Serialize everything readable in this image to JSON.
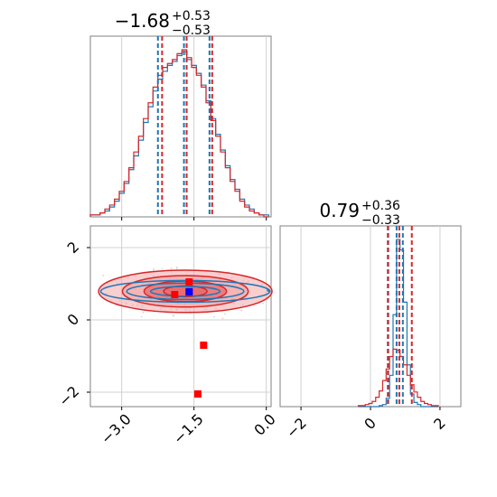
{
  "colors": {
    "blue": "#1f77b4",
    "red": "#d62728",
    "red_fill": "#f4a6a8",
    "red_fill_dark": "#e66c70",
    "grid": "#d0d0d0",
    "frame": "#808080",
    "marker_red": "#ff0000",
    "marker_blue": "#0000ff"
  },
  "chart_data": [
    {
      "type": "histogram",
      "panel": "top-left",
      "title": {
        "main": "−1.68",
        "sup": "+0.53",
        "sub": "−0.53"
      },
      "xlim": [
        -3.65,
        0.1
      ],
      "quantile_lines": {
        "blue": [
          -2.22,
          -1.68,
          -1.15
        ],
        "red": [
          -2.19,
          -1.68,
          -1.15
        ]
      },
      "x": [
        -3.6,
        -3.5,
        -3.4,
        -3.3,
        -3.2,
        -3.1,
        -3.0,
        -2.9,
        -2.8,
        -2.7,
        -2.6,
        -2.5,
        -2.4,
        -2.3,
        -2.2,
        -2.1,
        -2.0,
        -1.9,
        -1.8,
        -1.7,
        -1.6,
        -1.5,
        -1.4,
        -1.3,
        -1.2,
        -1.1,
        -1.0,
        -0.9,
        -0.8,
        -0.7,
        -0.6,
        -0.5,
        -0.4,
        -0.3,
        -0.2,
        -0.1,
        0.0
      ],
      "series": [
        {
          "values": [
            1,
            1,
            2,
            3,
            5,
            8,
            12,
            17,
            24,
            31,
            39,
            48,
            56,
            64,
            70,
            74,
            77,
            79,
            82,
            84,
            80,
            77,
            73,
            67,
            59,
            50,
            42,
            34,
            26,
            19,
            14,
            9,
            6,
            4,
            2,
            1,
            1
          ]
        },
        {
          "values": [
            1,
            1,
            2,
            4,
            6,
            9,
            13,
            18,
            25,
            33,
            41,
            50,
            58,
            66,
            72,
            76,
            78,
            80,
            83,
            85,
            81,
            76,
            72,
            66,
            58,
            49,
            41,
            33,
            25,
            18,
            13,
            8,
            5,
            3,
            2,
            1,
            0
          ]
        }
      ]
    },
    {
      "type": "contour",
      "panel": "bottom-left",
      "xlim": [
        -3.65,
        0.1
      ],
      "ylim": [
        -2.4,
        2.6
      ],
      "xticks": [
        "−3.0",
        "−1.5",
        "0.0"
      ],
      "xtick_values": [
        -3.0,
        -1.5,
        0.0
      ],
      "yticks": [
        "−2",
        "0",
        "2"
      ],
      "ytick_values": [
        -2,
        0,
        2
      ],
      "center": [
        -1.68,
        0.79
      ],
      "spread": [
        0.9,
        0.3
      ],
      "red_markers": [
        [
          -1.6,
          1.05
        ],
        [
          -1.9,
          0.7
        ],
        [
          -1.6,
          0.75
        ],
        [
          -1.3,
          -0.7
        ],
        [
          -1.42,
          -2.05
        ]
      ],
      "blue_markers": [
        [
          -1.6,
          0.78
        ]
      ]
    },
    {
      "type": "histogram",
      "panel": "bottom-right",
      "title": {
        "main": "0.79",
        "sup": "+0.36",
        "sub": "−0.33"
      },
      "xlim": [
        -2.6,
        2.6
      ],
      "xticks": [
        "−2",
        "0",
        "2"
      ],
      "xtick_values": [
        -2,
        0,
        2
      ],
      "quantile_lines": {
        "blue": [
          0.55,
          0.79,
          0.97
        ],
        "red": [
          0.46,
          0.79,
          1.15
        ]
      },
      "x": [
        -0.3,
        -0.2,
        -0.1,
        0.0,
        0.1,
        0.2,
        0.3,
        0.4,
        0.5,
        0.6,
        0.7,
        0.8,
        0.9,
        1.0,
        1.1,
        1.2,
        1.3,
        1.4,
        1.5,
        1.6,
        1.7,
        1.8,
        1.9
      ],
      "series": [
        {
          "values": [
            0,
            0,
            0,
            0,
            0,
            0,
            1,
            2,
            8,
            30,
            88,
            160,
            150,
            100,
            40,
            12,
            4,
            2,
            0,
            0,
            0,
            0,
            0
          ]
        },
        {
          "values": [
            1,
            1,
            2,
            3,
            5,
            9,
            15,
            25,
            36,
            48,
            55,
            54,
            48,
            40,
            30,
            21,
            14,
            9,
            5,
            3,
            2,
            1,
            1
          ]
        }
      ]
    }
  ]
}
